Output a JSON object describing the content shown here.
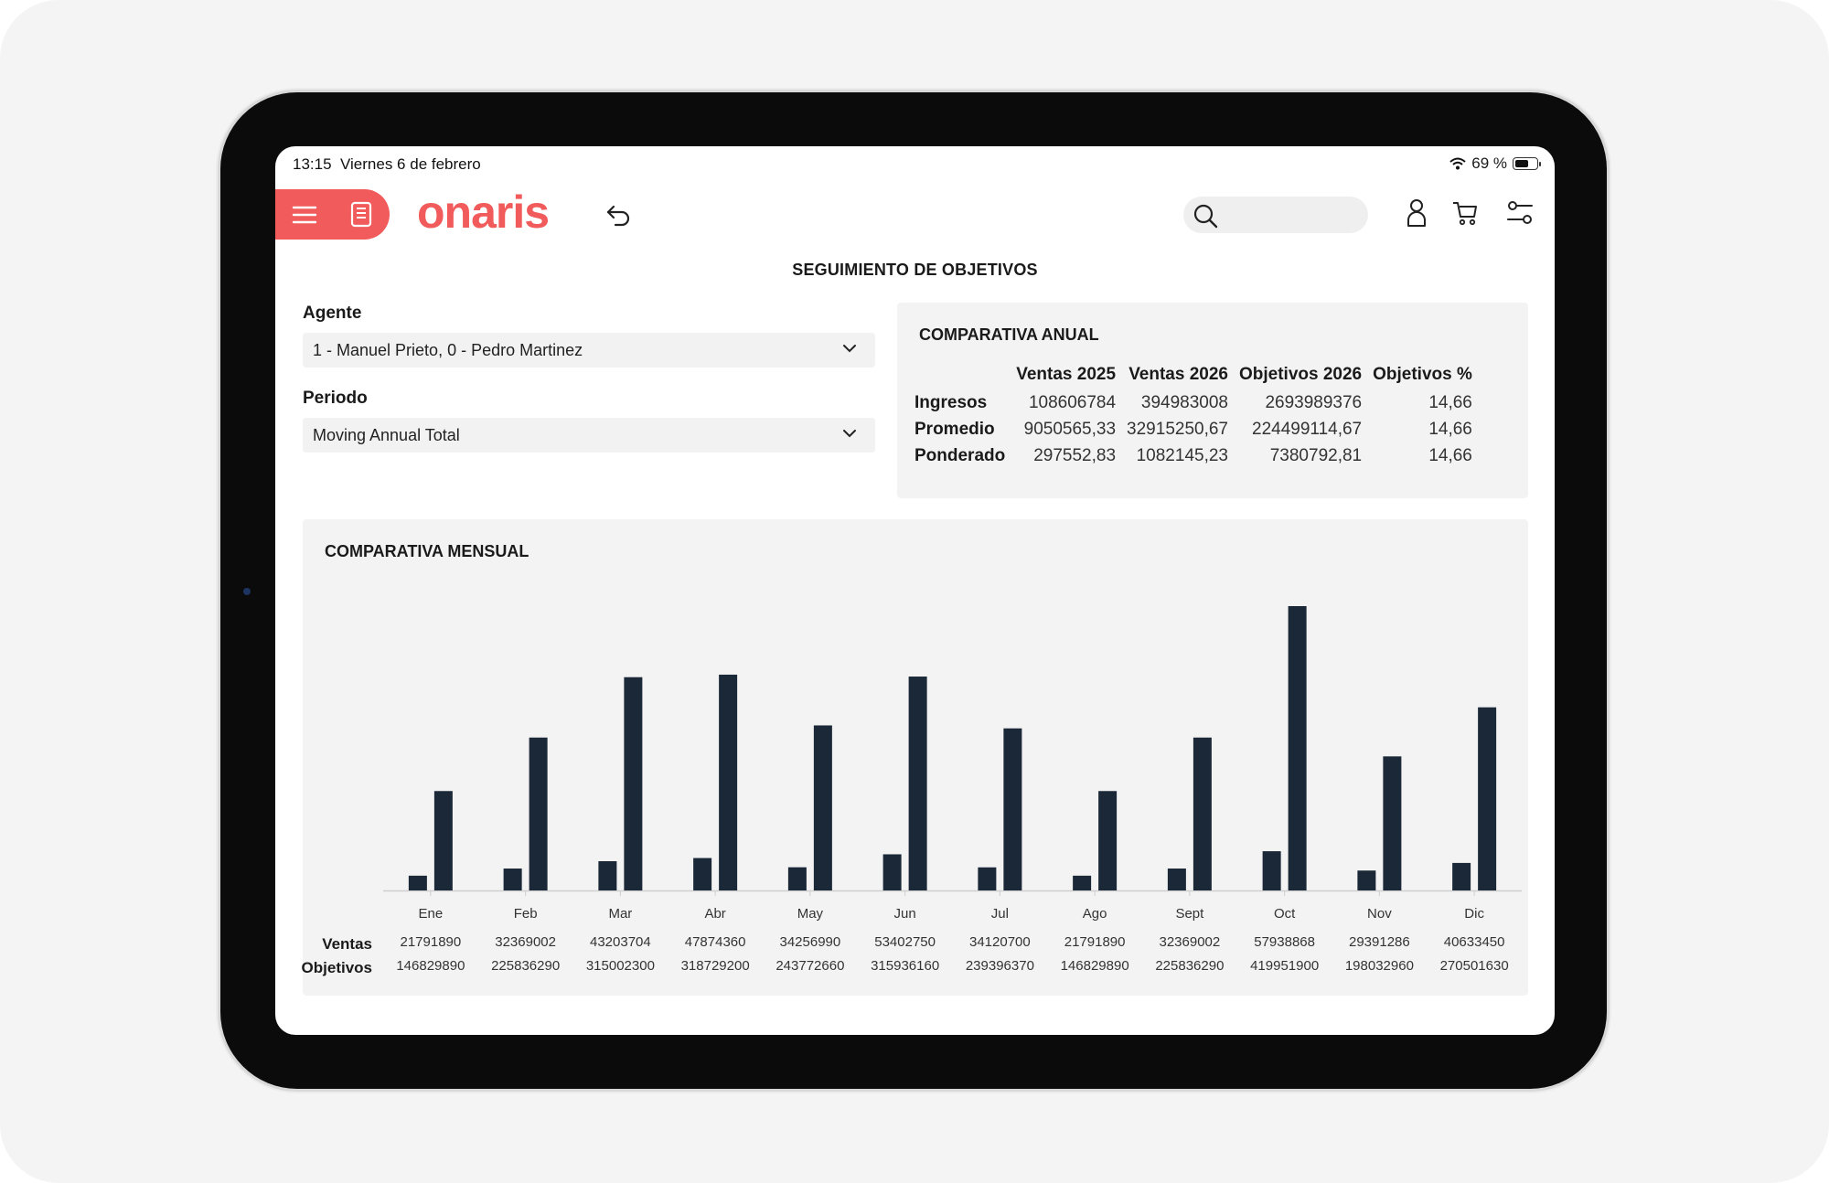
{
  "status": {
    "time": "13:15",
    "date": "Viernes 6 de febrero",
    "battery": "69 %",
    "battery_level": 0.69
  },
  "header": {
    "logo": "onaris",
    "search": {
      "value": "",
      "placeholder": ""
    },
    "icons": [
      "menu-icon",
      "catalog-icon",
      "back-icon",
      "search-icon",
      "user-icon",
      "cart-icon",
      "settings-icon"
    ]
  },
  "page_title": "SEGUIMIENTO DE OBJETIVOS",
  "filters": {
    "agent_label": "Agente",
    "agent_value": "1 - Manuel Prieto, 0 - Pedro Martinez",
    "period_label": "Periodo",
    "period_value": "Moving Annual Total"
  },
  "annual": {
    "title": "COMPARATIVA ANUAL",
    "columns": [
      "Ventas 2025",
      "Ventas 2026",
      "Objetivos 2026",
      "Objetivos %"
    ],
    "rows": [
      {
        "label": "Ingresos",
        "values": [
          "108606784",
          "394983008",
          "2693989376",
          "14,66"
        ]
      },
      {
        "label": "Promedio",
        "values": [
          "9050565,33",
          "32915250,67",
          "224499114,67",
          "14,66"
        ]
      },
      {
        "label": "Ponderado",
        "values": [
          "297552,83",
          "1082145,23",
          "7380792,81",
          "14,66"
        ]
      }
    ]
  },
  "monthly": {
    "title": "COMPARATIVA MENSUAL",
    "row_labels": {
      "ventas": "Ventas",
      "objetivos": "Objetivos"
    },
    "colors": {
      "bar": "#1b2837",
      "axis": "#cfcfcf"
    }
  },
  "chart_data": {
    "type": "bar",
    "categories": [
      "Ene",
      "Feb",
      "Mar",
      "Abr",
      "May",
      "Jun",
      "Jul",
      "Ago",
      "Sept",
      "Oct",
      "Nov",
      "Dic"
    ],
    "series": [
      {
        "name": "Ventas",
        "values": [
          21791890,
          32369002,
          43203704,
          47874360,
          34256990,
          53402750,
          34120700,
          21791890,
          32369002,
          57938868,
          29391286,
          40633450
        ]
      },
      {
        "name": "Objetivos",
        "values": [
          146829890,
          225836290,
          315002300,
          318729200,
          243772660,
          315936160,
          239396370,
          146829890,
          225836290,
          419951900,
          198032960,
          270501630
        ]
      }
    ],
    "title": "COMPARATIVA MENSUAL",
    "xlabel": "",
    "ylabel": "",
    "ylim": [
      0,
      419951900
    ],
    "grid": false,
    "legend": "none"
  }
}
